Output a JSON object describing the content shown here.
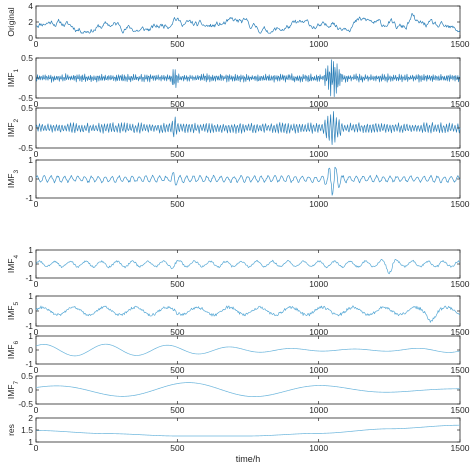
{
  "chart_data": [
    {
      "type": "line",
      "ylabel": "Original",
      "xlim": [
        0,
        1500
      ],
      "ylim": [
        0,
        4
      ],
      "yticks": [
        "0",
        "2",
        "4"
      ],
      "xticks": [
        "0",
        "500",
        "1000",
        "1500"
      ],
      "color": "#2b7fb8",
      "signal": {
        "kind": "original",
        "base": 1.5,
        "amp": 0.6,
        "seed": 11
      }
    },
    {
      "type": "line",
      "ylabel": "IMF",
      "ylabel_sub": "1",
      "xlim": [
        0,
        1500
      ],
      "ylim": [
        -0.5,
        0.5
      ],
      "yticks": [
        "-0.5",
        "0",
        "0.5"
      ],
      "xticks": [
        "0",
        "500",
        "1000",
        "1500"
      ],
      "color": "#2b7fb8",
      "signal": {
        "kind": "imf",
        "base": 0,
        "amp": 0.08,
        "period": 4,
        "burst_at": 1050,
        "burst_amp": 0.45,
        "seed": 23
      }
    },
    {
      "type": "line",
      "ylabel": "IMF",
      "ylabel_sub": "2",
      "xlim": [
        0,
        1500
      ],
      "ylim": [
        -0.5,
        0.5
      ],
      "yticks": [
        "-0.5",
        "0",
        "0.5"
      ],
      "xticks": [
        "0",
        "500",
        "1000",
        "1500"
      ],
      "color": "#2b7fb8",
      "signal": {
        "kind": "imf",
        "base": 0,
        "amp": 0.1,
        "period": 10,
        "burst_at": 1050,
        "burst_amp": 0.35,
        "seed": 37
      }
    },
    {
      "type": "line",
      "ylabel": "IMF",
      "ylabel_sub": "3",
      "xlim": [
        0,
        1500
      ],
      "ylim": [
        -1,
        1
      ],
      "yticks": [
        "-1",
        "0",
        "1"
      ],
      "xticks": [
        "0",
        "500",
        "1000",
        "1500"
      ],
      "color": "#3f93c8",
      "signal": {
        "kind": "imf",
        "base": 0,
        "amp": 0.15,
        "period": 24,
        "burst_at": 1050,
        "burst_amp": 0.7,
        "seed": 41
      }
    },
    {
      "type": "line",
      "ylabel": "IMF",
      "ylabel_sub": "4",
      "xlim": [
        0,
        1500
      ],
      "ylim": [
        -1,
        1
      ],
      "yticks": [
        "-1",
        "0",
        "1"
      ],
      "xticks": [
        "0",
        "500",
        "1000",
        "1500"
      ],
      "color": "#5aaad6",
      "signal": {
        "kind": "imf",
        "base": 0,
        "amp": 0.2,
        "period": 55,
        "burst_at": 1250,
        "burst_amp": 0.55,
        "seed": 53
      }
    },
    {
      "type": "line",
      "ylabel": "IMF",
      "ylabel_sub": "5",
      "xlim": [
        0,
        1500
      ],
      "ylim": [
        -1,
        1
      ],
      "yticks": [
        "-1",
        "0",
        "1"
      ],
      "xticks": [
        "0",
        "500",
        "1000",
        "1500"
      ],
      "color": "#5aaad6",
      "signal": {
        "kind": "imf",
        "base": 0,
        "amp": 0.25,
        "period": 110,
        "burst_at": 1400,
        "burst_amp": 0.5,
        "seed": 61
      }
    },
    {
      "type": "line",
      "ylabel": "IMF",
      "ylabel_sub": "6",
      "xlim": [
        0,
        1500
      ],
      "ylim": [
        -1,
        1
      ],
      "yticks": [
        "-1",
        "0",
        "1"
      ],
      "xticks": [
        "0",
        "500",
        "1000",
        "1500"
      ],
      "color": "#6bb5dc",
      "signal": {
        "kind": "smooth",
        "base": 0,
        "amp": 0.35,
        "period": 220,
        "seed": 71
      }
    },
    {
      "type": "line",
      "ylabel": "IMF",
      "ylabel_sub": "7",
      "xlim": [
        0,
        1500
      ],
      "ylim": [
        -0.5,
        0.5
      ],
      "yticks": [
        "-0.5",
        "0",
        "0.5"
      ],
      "xticks": [
        "0",
        "500",
        "1000",
        "1500"
      ],
      "color": "#6bb5dc",
      "signal": {
        "kind": "smooth",
        "base": 0,
        "amp": 0.22,
        "period": 480,
        "seed": 83
      }
    },
    {
      "type": "line",
      "ylabel": "res",
      "xlim": [
        0,
        1500
      ],
      "ylim": [
        1,
        2
      ],
      "yticks": [
        "1",
        "1.5",
        "2"
      ],
      "xticks": [
        "0",
        "500",
        "1000",
        "1500"
      ],
      "xlabel": "time/h",
      "color": "#6bb5dc",
      "signal": {
        "kind": "trend",
        "points": [
          [
            0,
            1.48
          ],
          [
            250,
            1.35
          ],
          [
            500,
            1.25
          ],
          [
            750,
            1.25
          ],
          [
            1000,
            1.36
          ],
          [
            1250,
            1.55
          ],
          [
            1500,
            1.7
          ]
        ]
      }
    }
  ]
}
